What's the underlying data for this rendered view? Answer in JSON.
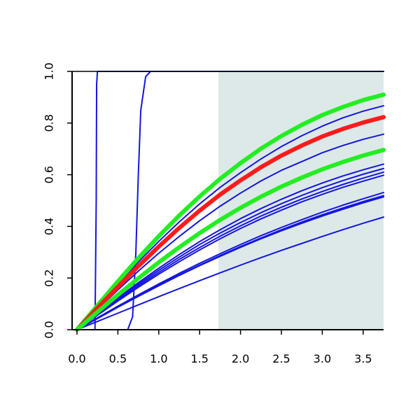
{
  "chart_data": {
    "type": "line",
    "title": "",
    "xlabel": "",
    "ylabel": "",
    "xlim": [
      -0.06,
      3.75
    ],
    "ylim": [
      0.0,
      1.0
    ],
    "grid": false,
    "legend": "none",
    "x_ticks": [
      0.0,
      0.5,
      1.0,
      1.5,
      2.0,
      2.5,
      3.0,
      3.5
    ],
    "x_tick_labels": [
      "0.0",
      "0.5",
      "1.0",
      "1.5",
      "2.0",
      "2.5",
      "3.0",
      "3.5"
    ],
    "y_ticks": [
      0.0,
      0.2,
      0.4,
      0.6,
      0.8,
      1.0
    ],
    "y_tick_labels": [
      "0.0",
      "0.2",
      "0.4",
      "0.6",
      "0.8",
      "1.0"
    ],
    "shaded_region": {
      "x": [
        1.73,
        3.75
      ],
      "y": [
        0.0,
        1.0
      ],
      "color": "#dde9e9"
    },
    "colors": {
      "blue": "#1414e0",
      "red": "#ff1a1a",
      "green": "#22ee22",
      "axis": "#000000"
    },
    "x_samples": [
      0.0,
      0.25,
      0.5,
      0.75,
      1.0,
      1.25,
      1.5,
      1.75,
      2.0,
      2.25,
      2.5,
      2.75,
      3.0,
      3.25,
      3.5,
      3.75
    ],
    "series": [
      {
        "style": "blue",
        "kind": "step",
        "x": [
          0.0,
          0.22,
          0.235,
          0.24,
          0.25,
          3.75
        ],
        "values": [
          0.0,
          0.0,
          0.5,
          0.95,
          1.0,
          1.0
        ]
      },
      {
        "style": "blue",
        "kind": "step",
        "x": [
          0.0,
          0.62,
          0.68,
          0.72,
          0.75,
          0.78,
          0.84,
          0.9,
          3.75
        ],
        "values": [
          0.0,
          0.0,
          0.05,
          0.3,
          0.6,
          0.85,
          0.98,
          1.0,
          1.0
        ]
      },
      {
        "style": "blue",
        "kind": "curve",
        "values": [
          0.0,
          0.089,
          0.178,
          0.262,
          0.342,
          0.417,
          0.487,
          0.551,
          0.608,
          0.661,
          0.709,
          0.751,
          0.788,
          0.82,
          0.846,
          0.867
        ]
      },
      {
        "style": "blue",
        "kind": "curve",
        "values": [
          0.0,
          0.078,
          0.154,
          0.227,
          0.296,
          0.361,
          0.422,
          0.478,
          0.529,
          0.576,
          0.617,
          0.651,
          0.685,
          0.713,
          0.737,
          0.757
        ]
      },
      {
        "style": "blue",
        "kind": "curve",
        "values": [
          0.0,
          0.062,
          0.123,
          0.182,
          0.238,
          0.291,
          0.341,
          0.387,
          0.43,
          0.469,
          0.505,
          0.538,
          0.568,
          0.595,
          0.619,
          0.641
        ]
      },
      {
        "style": "blue",
        "kind": "curve",
        "values": [
          0.0,
          0.06,
          0.119,
          0.176,
          0.23,
          0.281,
          0.33,
          0.374,
          0.415,
          0.453,
          0.488,
          0.52,
          0.55,
          0.577,
          0.602,
          0.624
        ]
      },
      {
        "style": "blue",
        "kind": "curve",
        "values": [
          0.0,
          0.058,
          0.115,
          0.17,
          0.222,
          0.272,
          0.318,
          0.362,
          0.402,
          0.44,
          0.474,
          0.506,
          0.535,
          0.562,
          0.587,
          0.61
        ]
      },
      {
        "style": "blue",
        "kind": "curve",
        "values": [
          0.0,
          0.056,
          0.111,
          0.164,
          0.215,
          0.263,
          0.309,
          0.352,
          0.392,
          0.429,
          0.463,
          0.495,
          0.524,
          0.551,
          0.575,
          0.598
        ]
      },
      {
        "style": "blue",
        "kind": "curve",
        "values": [
          0.0,
          0.046,
          0.091,
          0.135,
          0.177,
          0.218,
          0.257,
          0.294,
          0.33,
          0.364,
          0.396,
          0.426,
          0.455,
          0.482,
          0.507,
          0.531
        ]
      },
      {
        "style": "blue",
        "kind": "curve",
        "values": [
          0.0,
          0.044,
          0.088,
          0.131,
          0.172,
          0.212,
          0.25,
          0.287,
          0.322,
          0.355,
          0.387,
          0.417,
          0.445,
          0.471,
          0.496,
          0.519
        ]
      },
      {
        "style": "blue",
        "kind": "curve",
        "values": [
          0.0,
          0.043,
          0.087,
          0.129,
          0.17,
          0.21,
          0.248,
          0.284,
          0.319,
          0.352,
          0.383,
          0.412,
          0.44,
          0.466,
          0.491,
          0.514
        ]
      },
      {
        "style": "blue",
        "kind": "curve",
        "values": [
          0.0,
          0.032,
          0.064,
          0.096,
          0.128,
          0.159,
          0.19,
          0.22,
          0.25,
          0.279,
          0.307,
          0.334,
          0.361,
          0.387,
          0.412,
          0.436
        ]
      },
      {
        "style": "green",
        "kind": "curve",
        "values": [
          0.0,
          0.094,
          0.187,
          0.277,
          0.362,
          0.442,
          0.516,
          0.584,
          0.645,
          0.701,
          0.75,
          0.793,
          0.831,
          0.862,
          0.889,
          0.91
        ]
      },
      {
        "style": "red",
        "kind": "curve",
        "values": [
          0.0,
          0.084,
          0.166,
          0.246,
          0.322,
          0.394,
          0.461,
          0.523,
          0.578,
          0.629,
          0.674,
          0.713,
          0.748,
          0.777,
          0.802,
          0.823
        ]
      },
      {
        "style": "green",
        "kind": "curve",
        "values": [
          0.0,
          0.068,
          0.135,
          0.199,
          0.261,
          0.319,
          0.374,
          0.425,
          0.472,
          0.515,
          0.554,
          0.589,
          0.621,
          0.649,
          0.674,
          0.696
        ]
      }
    ]
  }
}
